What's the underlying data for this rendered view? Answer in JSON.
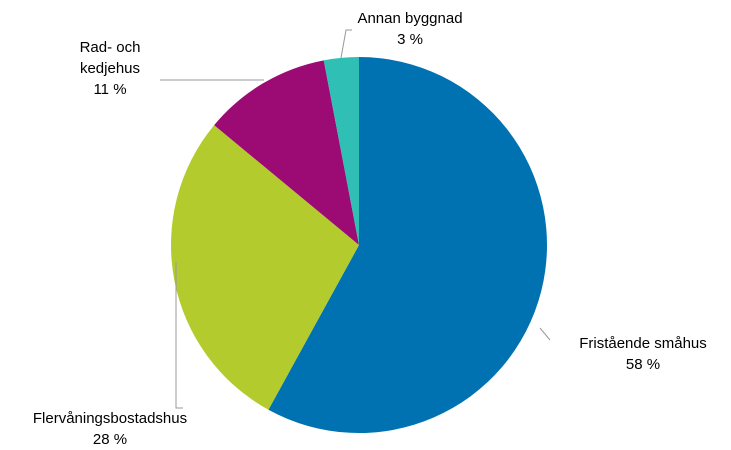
{
  "chart_data": {
    "type": "pie",
    "categories": [
      "Fristående småhus",
      "Flervåningsbostadshus",
      "Rad- och kedjehus",
      "Annan byggnad"
    ],
    "values": [
      58,
      28,
      11,
      3
    ],
    "value_labels": [
      "58 %",
      "28 %",
      "11 %",
      "3 %"
    ],
    "colors": [
      "#0072b1",
      "#b4cb2e",
      "#9c0b74",
      "#2fbfb4"
    ]
  }
}
